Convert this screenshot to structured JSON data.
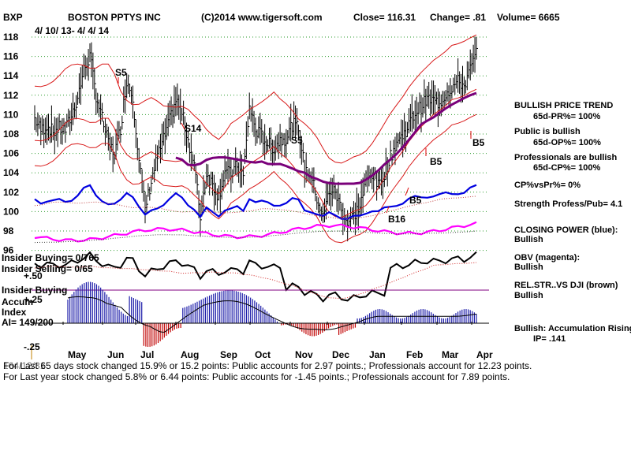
{
  "header": {
    "symbol": "BXP",
    "company": "BOSTON PPTYS INC",
    "source": "(C)2014 www.tigersoft.com",
    "close": "Close=  116.31",
    "change": "Change= .81",
    "volume": "Volume= 6665",
    "date_range": "4/ 10/ 13-  4/ 4/ 14"
  },
  "chart_data": {
    "type": "line",
    "title": "BOSTON PPTYS INC",
    "y_ticks": [
      118,
      116,
      114,
      112,
      110,
      108,
      106,
      104,
      102,
      100,
      98,
      96
    ],
    "ylim": [
      95,
      119
    ],
    "x_ticks": [
      "May",
      "Jun",
      "Jul",
      "Aug",
      "Sep",
      "Oct",
      "Nov",
      "Dec",
      "Jan",
      "Feb",
      "Mar",
      "Apr"
    ],
    "grid": true,
    "price_closes": [
      109.6,
      108.4,
      108.9,
      108.2,
      108.6,
      108.4,
      109.9,
      111.8,
      114.6,
      116.0,
      112.0,
      109.6,
      107.0,
      106.0,
      108.6,
      113.6,
      111.8,
      105.4,
      100.2,
      103.2,
      105.6,
      107.4,
      109.4,
      111.5,
      110.2,
      107.4,
      104.8,
      99.6,
      104.0,
      102.8,
      101.6,
      104.2,
      103.8,
      104.8,
      103.6,
      110.8,
      108.4,
      107.8,
      107.0,
      106.6,
      107.4,
      107.6,
      109.0,
      108.6,
      104.4,
      103.8,
      101.4,
      99.4,
      102.2,
      102.0,
      100.2,
      98.8,
      99.6,
      100.6,
      103.0,
      104.0,
      102.6,
      104.0,
      105.6,
      107.2,
      107.8,
      109.0,
      110.2,
      110.8,
      111.6,
      111.4,
      111.2,
      112.2,
      112.8,
      113.4,
      113.0,
      114.6,
      116.3
    ],
    "ylabel_insider_buying": "Insider Buying= 0/765",
    "ylabel_insider_selling": "Insider Selling= 0/65",
    "osc_ticks": [
      "+.50",
      "+.25",
      "-.25"
    ],
    "accum_label": "Accum",
    "index_label": "Index",
    "ai_label": "AI= 149/200",
    "signals": [
      {
        "label": "S5",
        "x": "Jun"
      },
      {
        "label": "S14",
        "x": "Aug"
      },
      {
        "label": "S5",
        "x": "Nov"
      },
      {
        "label": "B5",
        "x": "Feb"
      },
      {
        "label": "B5",
        "x": "Jan"
      },
      {
        "label": "B5",
        "x": "Apr"
      },
      {
        "label": "B16",
        "x": "Jan"
      }
    ],
    "insider_buying_marker": "Insider Buying"
  },
  "right_panel": {
    "lines": [
      "BULLISH PRICE TREND",
      "65d-PR%= 100%",
      "Public is bullish",
      "65d-OP%= 100%",
      "Professionals are bullish",
      "65d-CP%= 100%",
      "CP%vsPr%=  0%",
      "Strength Profess/Pub= 4.1",
      "CLOSING POWER (blue):",
      "Bullish",
      "OBV (magenta):",
      "Bullish",
      "REL.STR..VS DJI (brown)",
      "Bullish",
      "Bullish: Accumulation Rising",
      "IP=  .141"
    ]
  },
  "footer": {
    "line1": "For Last 65 days stock changed  15.9% or  15.2 points:  Public accounts for  2.97 points.;  Professionals account for  12.23 points.",
    "line2": "For Last year stock changed  5.8% or  6.44 points:  Public accounts for -1.45 points.;  Professionals account for  7.89 points.",
    "overlay": "164/12/31"
  },
  "colors": {
    "band": "#d81818",
    "ma": "#7a007a",
    "closing_power": "#0000e0",
    "obv": "#ff00ff",
    "rel_str": "#000000",
    "accum": "#1a1aa8",
    "dist": "#c00000",
    "grid": "#2a9a2a"
  }
}
